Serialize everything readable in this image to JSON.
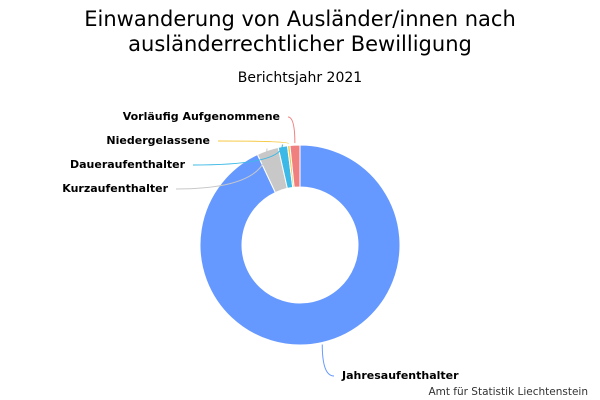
{
  "chart_data": {
    "type": "pie",
    "title": [
      "Einwanderung von Ausländer/innen nach",
      "ausländerrechtlicher Bewilligung"
    ],
    "subtitle": "Berichtsjahr 2021",
    "credit": "Amt für Statistik Liechtenstein",
    "categories": [
      "Jahresaufenthalter",
      "Kurzaufenthalter",
      "Daueraufenthalter",
      "Niedergelassene",
      "Vorläufig Aufgenommene"
    ],
    "values": [
      93,
      3.5,
      1.5,
      0.4,
      1.6
    ],
    "colors": [
      "#6699ff",
      "#c8c8c8",
      "#3cb9e6",
      "#f5c842",
      "#f08080"
    ],
    "donut": true
  }
}
